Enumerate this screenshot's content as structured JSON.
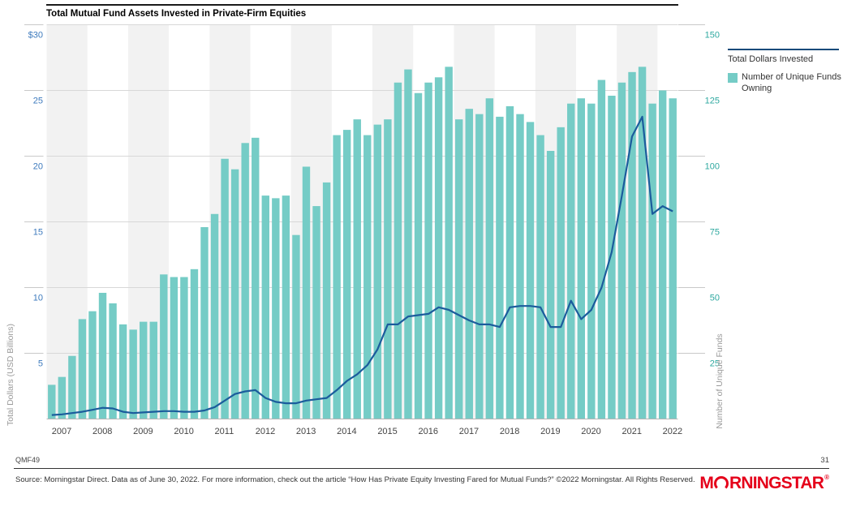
{
  "title": "Total Mutual Fund Assets Invested in Private-Firm Equities",
  "legend": {
    "line_label": "Total Dollars Invested",
    "bar_label": "Number of Unique Funds Owning"
  },
  "left_axis": {
    "title": "Total Dollars (USD Billions)",
    "tick_labels": [
      "$30",
      "25",
      "20",
      "15",
      "10",
      "5"
    ],
    "tick_values": [
      30,
      25,
      20,
      15,
      10,
      5
    ],
    "range": [
      0,
      30
    ]
  },
  "right_axis": {
    "title": "Number of Unique Funds",
    "tick_labels": [
      "150",
      "125",
      "100",
      "75",
      "50",
      "25"
    ],
    "tick_values": [
      150,
      125,
      100,
      75,
      50,
      25
    ],
    "range": [
      0,
      150
    ]
  },
  "footer": {
    "code": "QMF49",
    "page_number": "31",
    "source": "Source: Morningstar Direct. Data as of June 30, 2022. For more information, check out the article “How Has Private Equity Investing Fared for Mutual Funds?” ©2022 Morningstar. All Rights Reserved.",
    "logo_text": "MORNINGSTAR",
    "registered_mark": "®"
  },
  "colors": {
    "bar": "#75ccc6",
    "line": "#1b5c9c",
    "left_tick_text": "#3d7abd",
    "right_tick_text": "#2fa9a0",
    "year_text": "#444444",
    "axis_title_text": "#9a9a9a",
    "gridline": "#d8d8d8",
    "band": "#f2f2f2",
    "baseline": "#b5b5b5",
    "tick": "#c9c9c9",
    "logo_red": "#e5001a"
  },
  "chart_data": {
    "type": "bar+line combo, quarterly",
    "title": "Total Mutual Fund Assets Invested in Private-Firm Equities",
    "years": [
      2007,
      2008,
      2009,
      2010,
      2011,
      2012,
      2013,
      2014,
      2015,
      2016,
      2017,
      2018,
      2019,
      2020,
      2021,
      2022
    ],
    "x_quarters": [
      "2007Q1",
      "2007Q2",
      "2007Q3",
      "2007Q4",
      "2008Q1",
      "2008Q2",
      "2008Q3",
      "2008Q4",
      "2009Q1",
      "2009Q2",
      "2009Q3",
      "2009Q4",
      "2010Q1",
      "2010Q2",
      "2010Q3",
      "2010Q4",
      "2011Q1",
      "2011Q2",
      "2011Q3",
      "2011Q4",
      "2012Q1",
      "2012Q2",
      "2012Q3",
      "2012Q4",
      "2013Q1",
      "2013Q2",
      "2013Q3",
      "2013Q4",
      "2014Q1",
      "2014Q2",
      "2014Q3",
      "2014Q4",
      "2015Q1",
      "2015Q2",
      "2015Q3",
      "2015Q4",
      "2016Q1",
      "2016Q2",
      "2016Q3",
      "2016Q4",
      "2017Q1",
      "2017Q2",
      "2017Q3",
      "2017Q4",
      "2018Q1",
      "2018Q2",
      "2018Q3",
      "2018Q4",
      "2019Q1",
      "2019Q2",
      "2019Q3",
      "2019Q4",
      "2020Q1",
      "2020Q2",
      "2020Q3",
      "2020Q4",
      "2021Q1",
      "2021Q2",
      "2021Q3",
      "2021Q4",
      "2022Q1",
      "2022Q2"
    ],
    "series": [
      {
        "name": "Number of Unique Funds Owning",
        "type": "bar",
        "axis": "right",
        "ylim": [
          0,
          150
        ],
        "values": [
          13,
          16,
          24,
          38,
          41,
          48,
          44,
          36,
          34,
          37,
          37,
          55,
          54,
          54,
          57,
          73,
          78,
          99,
          95,
          105,
          107,
          85,
          84,
          85,
          70,
          96,
          81,
          90,
          108,
          110,
          114,
          108,
          112,
          114,
          128,
          133,
          124,
          128,
          130,
          134,
          114,
          118,
          116,
          122,
          115,
          119,
          116,
          113,
          108,
          102,
          111,
          120,
          122,
          120,
          129,
          123,
          128,
          132,
          134,
          120,
          125,
          122
        ]
      },
      {
        "name": "Total Dollars Invested",
        "type": "line",
        "axis": "left",
        "ylim": [
          0,
          30
        ],
        "values": [
          0.3,
          0.35,
          0.45,
          0.55,
          0.7,
          0.85,
          0.8,
          0.55,
          0.45,
          0.5,
          0.55,
          0.6,
          0.6,
          0.55,
          0.55,
          0.65,
          0.9,
          1.4,
          1.9,
          2.1,
          2.2,
          1.6,
          1.3,
          1.2,
          1.2,
          1.4,
          1.5,
          1.6,
          2.2,
          2.9,
          3.4,
          4.1,
          5.3,
          7.2,
          7.2,
          7.8,
          7.9,
          8.0,
          8.5,
          8.3,
          7.9,
          7.5,
          7.2,
          7.2,
          7.0,
          8.5,
          8.6,
          8.6,
          8.5,
          7.0,
          7.0,
          9.0,
          7.6,
          8.3,
          10.0,
          12.7,
          17.0,
          21.5,
          23.0,
          15.6,
          16.2,
          15.8
        ]
      }
    ],
    "layout": {
      "gridlines": "horizontal at every 5 (left) / 25 (right)",
      "background_bands": "alternating light-gray vertical bands per year, odd years (2007, 2009, ...) shaded",
      "legend_position": "outside right"
    }
  }
}
